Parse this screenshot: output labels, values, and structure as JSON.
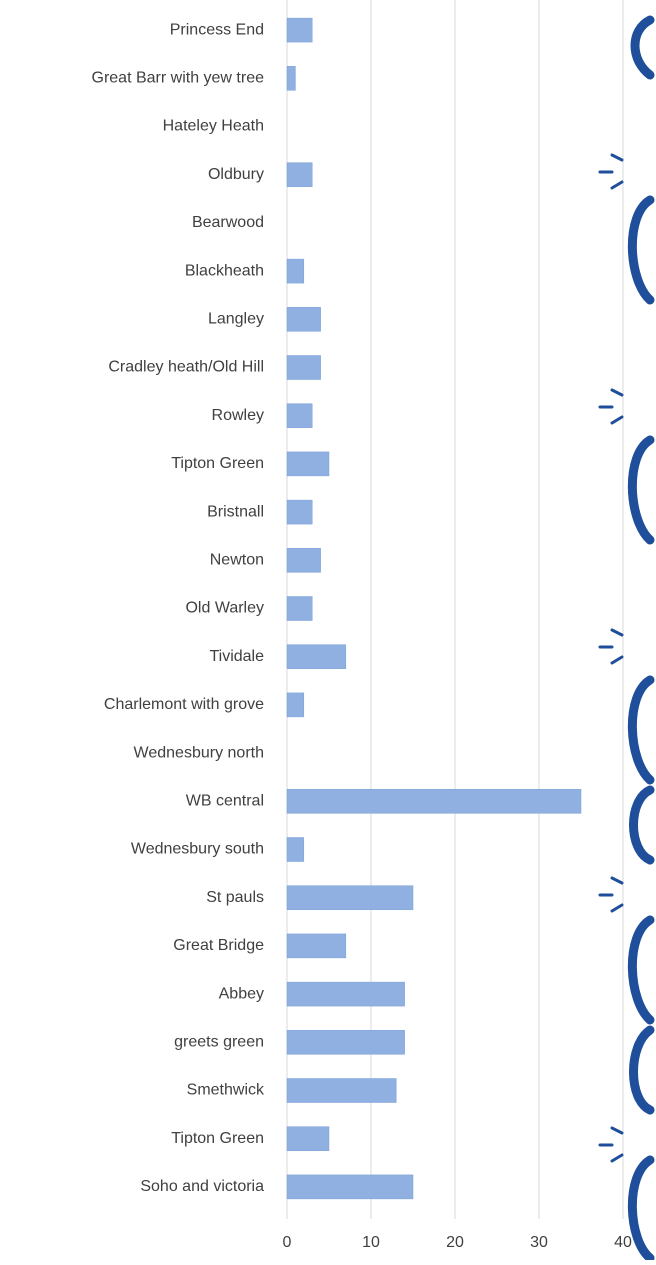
{
  "chart_data": {
    "type": "hbar",
    "categories": [
      "Princess End",
      "Great Barr with yew tree",
      "Hateley Heath",
      "Oldbury",
      "Bearwood",
      "Blackheath",
      "Langley",
      "Cradley heath/Old Hill",
      "Rowley",
      "Tipton Green",
      "Bristnall",
      "Newton",
      "Old Warley",
      "Tividale",
      "Charlemont with grove",
      "Wednesbury north",
      "WB central",
      "Wednesbury south",
      "St pauls",
      "Great Bridge",
      "Abbey",
      "greets green",
      "Smethwick",
      "Tipton Green",
      "Soho and victoria"
    ],
    "values": [
      3,
      1,
      0,
      3,
      0,
      2,
      4,
      4,
      3,
      5,
      3,
      4,
      3,
      7,
      2,
      0,
      35,
      2,
      15,
      7,
      14,
      14,
      13,
      5,
      15
    ],
    "color": "#8fb0e0",
    "xlim": [
      0,
      40
    ],
    "xticks": [
      0,
      10,
      20,
      30,
      40
    ],
    "grid": true
  }
}
